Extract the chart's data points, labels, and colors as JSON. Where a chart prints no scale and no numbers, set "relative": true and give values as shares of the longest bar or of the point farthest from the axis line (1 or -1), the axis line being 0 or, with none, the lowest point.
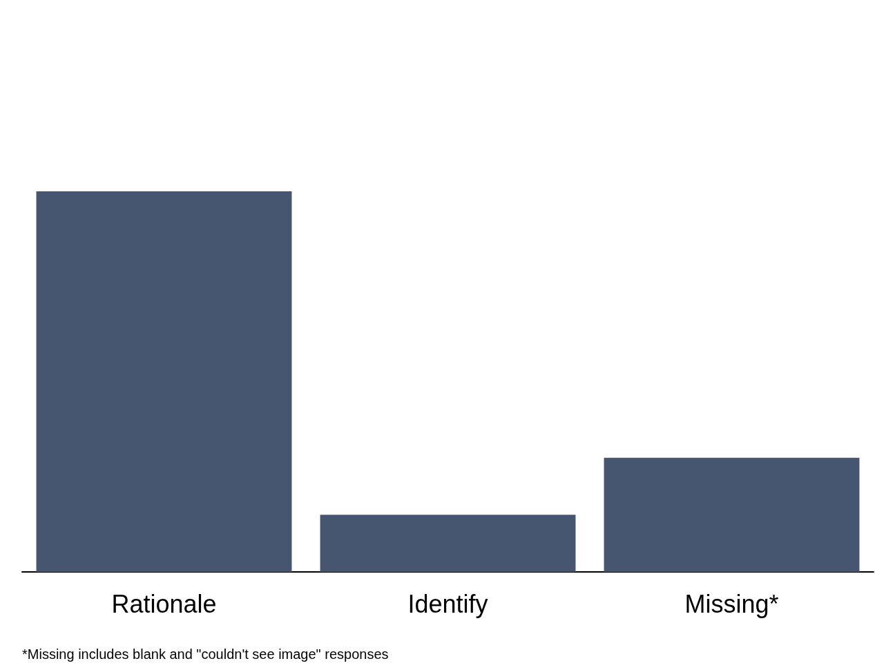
{
  "chart_data": {
    "type": "bar",
    "relative": true,
    "categories": [
      "Rationale",
      "Identify",
      "Missing*"
    ],
    "values": [
      1,
      0.15,
      0.3
    ],
    "color": "#465670",
    "annotations": [
      "*Missing includes blank and \"couldn't see image\" responses"
    ]
  }
}
